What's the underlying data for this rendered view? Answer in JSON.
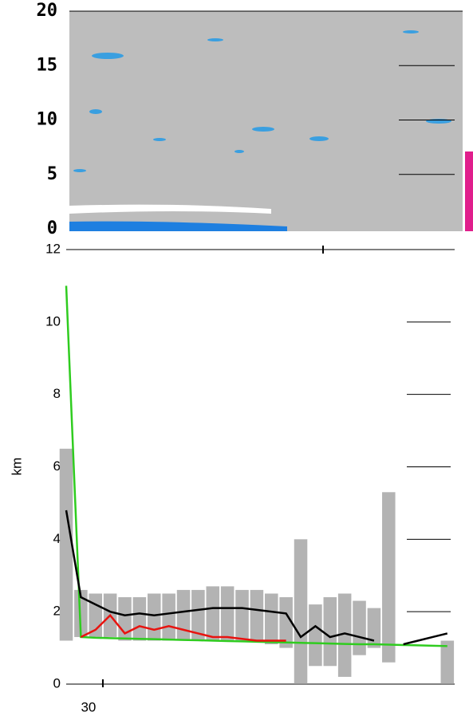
{
  "chart_data": [
    {
      "type": "heatmap",
      "ylim": [
        0,
        20
      ],
      "yticks": [
        0,
        5,
        10,
        15,
        20
      ],
      "background": "#bdbdbd"
    },
    {
      "type": "line",
      "ylabel": "km",
      "x": [
        25,
        27,
        29,
        31,
        33,
        35,
        37,
        39,
        41,
        43,
        45,
        47,
        49,
        51,
        53,
        55,
        57,
        59,
        61,
        63,
        65,
        67,
        69,
        71,
        73,
        75,
        77
      ],
      "xlim": [
        25,
        78
      ],
      "xticks": [
        30
      ],
      "ylim": [
        0,
        12
      ],
      "yticks": [
        0,
        2,
        4,
        6,
        8,
        10,
        12
      ],
      "bands": [
        {
          "color": "#999999",
          "lower": [
            1.2,
            1.3,
            1.3,
            1.3,
            1.2,
            1.2,
            1.2,
            1.2,
            1.2,
            1.2,
            1.2,
            1.2,
            1.2,
            1.2,
            1.1,
            1.0,
            0,
            0.5,
            0.5,
            0.2,
            0.8,
            1.0,
            0.6,
            null,
            null,
            null,
            0
          ],
          "upper": [
            6.5,
            2.6,
            2.5,
            2.5,
            2.4,
            2.4,
            2.5,
            2.5,
            2.6,
            2.6,
            2.7,
            2.7,
            2.6,
            2.6,
            2.5,
            2.4,
            4.0,
            2.2,
            2.4,
            2.5,
            2.3,
            2.1,
            5.3,
            null,
            null,
            null,
            1.2
          ]
        }
      ],
      "series": [
        {
          "name": "black",
          "color": "#000000",
          "values": [
            4.8,
            2.4,
            2.2,
            2.0,
            1.9,
            1.95,
            1.9,
            1.95,
            2.0,
            2.05,
            2.1,
            2.1,
            2.1,
            2.05,
            2.0,
            1.95,
            1.3,
            1.6,
            1.3,
            1.4,
            1.3,
            1.2,
            null,
            1.1,
            1.2,
            1.3,
            1.4
          ]
        },
        {
          "name": "red",
          "color": "#e8130f",
          "values": [
            null,
            1.3,
            1.5,
            1.9,
            1.4,
            1.6,
            1.5,
            1.6,
            1.5,
            1.4,
            1.3,
            1.3,
            1.25,
            1.2,
            1.2,
            1.2,
            null,
            null,
            null,
            null,
            null,
            null,
            null,
            null,
            null,
            null,
            null
          ]
        },
        {
          "name": "green",
          "color": "#2fcc1f",
          "values": [
            11.0,
            1.3,
            1.28,
            1.27,
            1.26,
            1.25,
            1.24,
            1.23,
            1.22,
            1.21,
            1.2,
            1.19,
            1.18,
            1.17,
            1.16,
            1.15,
            1.14,
            1.13,
            1.12,
            1.11,
            1.1,
            1.1,
            1.09,
            1.08,
            1.07,
            1.06,
            1.05
          ]
        }
      ]
    }
  ]
}
